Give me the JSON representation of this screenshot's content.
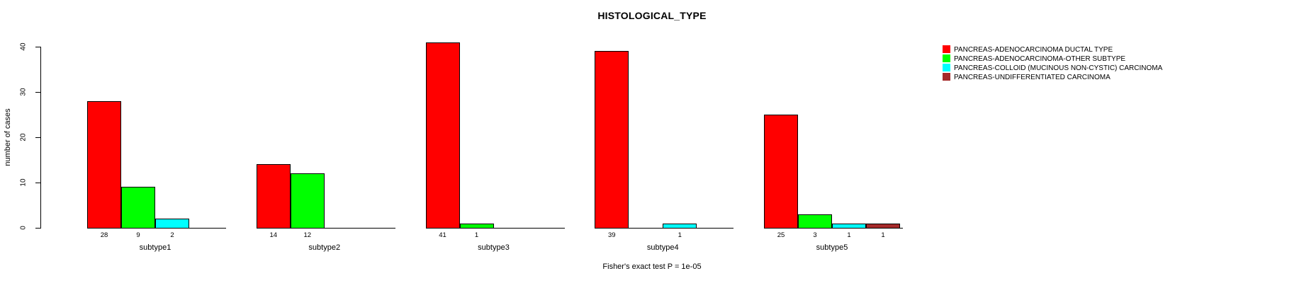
{
  "chart_data": {
    "type": "bar",
    "title": "HISTOLOGICAL_TYPE",
    "xlabel": "",
    "ylabel": "number of cases",
    "ylim": [
      0,
      40
    ],
    "yticks": [
      0,
      10,
      20,
      30,
      40
    ],
    "grid": false,
    "legend_position": "right",
    "bar_value_labels": true,
    "categories": [
      "subtype1",
      "subtype2",
      "subtype3",
      "subtype4",
      "subtype5"
    ],
    "series": [
      {
        "name": "PANCREAS-ADENOCARCINOMA DUCTAL TYPE",
        "color": "#FF0000",
        "values": [
          28,
          14,
          41,
          39,
          25
        ]
      },
      {
        "name": "PANCREAS-ADENOCARCINOMA-OTHER SUBTYPE",
        "color": "#00FF00",
        "values": [
          9,
          12,
          1,
          0,
          3
        ]
      },
      {
        "name": "PANCREAS-COLLOID (MUCINOUS NON-CYSTIC) CARCINOMA",
        "color": "#00FFFF",
        "values": [
          2,
          0,
          0,
          1,
          1
        ]
      },
      {
        "name": "PANCREAS-UNDIFFERENTIATED CARCINOMA",
        "color": "#A52A2A",
        "values": [
          0,
          0,
          0,
          0,
          1
        ]
      }
    ],
    "annotation": "Fisher's exact test P = 1e-05"
  }
}
